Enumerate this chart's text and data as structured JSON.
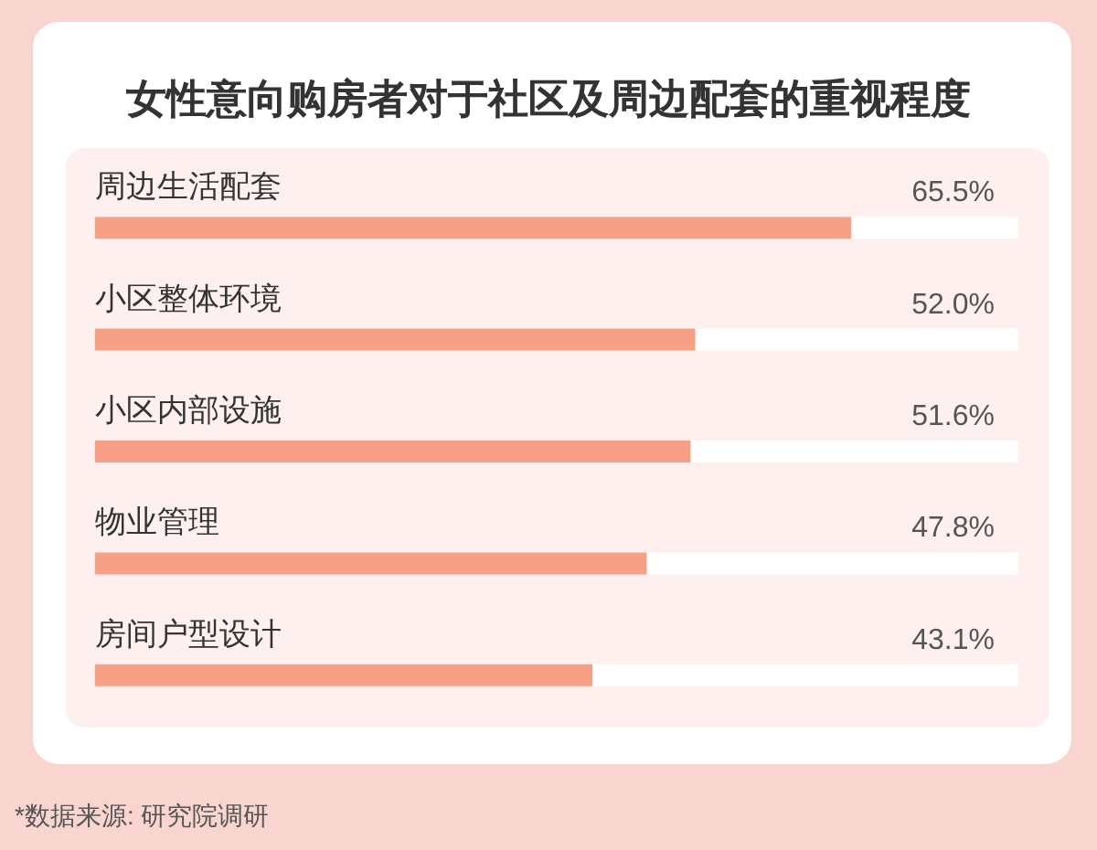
{
  "chart_data": {
    "type": "bar",
    "orientation": "horizontal",
    "title": "女性意向购房者对于社区及周边配套的重视程度",
    "categories": [
      "周边生活配套",
      "小区整体环境",
      "小区内部设施",
      "物业管理",
      "房间户型设计"
    ],
    "values": [
      65.5,
      52.0,
      51.6,
      47.8,
      43.1
    ],
    "color": "#f8a086",
    "value_labels": [
      "65.5%",
      "52.0%",
      "51.6%",
      "47.8%",
      "43.1%"
    ],
    "xlim": [
      0,
      80
    ],
    "tick_labels": "y",
    "annotations": [
      "*数据来源: 研究院调研"
    ]
  }
}
